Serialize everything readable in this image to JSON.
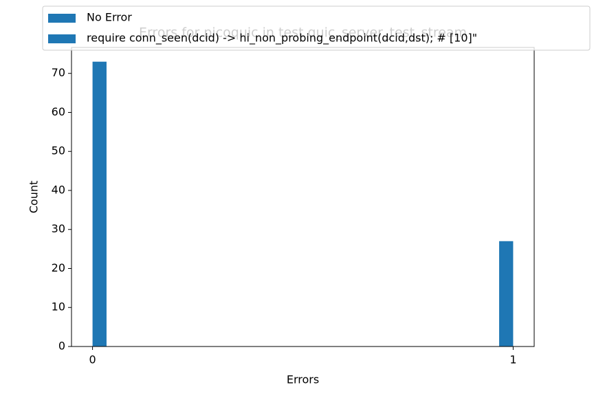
{
  "chart_data": {
    "type": "histogram",
    "title": "Errors for picoquic in test quic_server_test_stream",
    "xlabel": "Errors",
    "ylabel": "Count",
    "bins": [
      0,
      0.0333,
      0.0667,
      0.1,
      0.1333,
      0.1667,
      0.2,
      0.2333,
      0.2667,
      0.3,
      0.3333,
      0.3667,
      0.4,
      0.4333,
      0.4667,
      0.5,
      0.5333,
      0.5667,
      0.6,
      0.6333,
      0.6667,
      0.7,
      0.7333,
      0.7667,
      0.8,
      0.8333,
      0.8667,
      0.9,
      0.9333,
      0.9667,
      1
    ],
    "counts": [
      73,
      0,
      0,
      0,
      0,
      0,
      0,
      0,
      0,
      0,
      0,
      0,
      0,
      0,
      0,
      0,
      0,
      0,
      0,
      0,
      0,
      0,
      0,
      0,
      0,
      0,
      0,
      0,
      0,
      27
    ],
    "color": "#1f77b4",
    "legend": [
      {
        "name": "No Error",
        "color": "#1f77b4"
      },
      {
        "name": "require conn_seen(dcid) -> hi_non_probing_endpoint(dcid,dst);  # [10]\"",
        "color": "#1f77b4"
      }
    ],
    "xlim": [
      -0.05,
      1.05
    ],
    "xticks": [
      0,
      1
    ],
    "ylim": [
      0,
      76.65
    ],
    "yticks": [
      0,
      10,
      20,
      30,
      40,
      50,
      60,
      70
    ]
  }
}
